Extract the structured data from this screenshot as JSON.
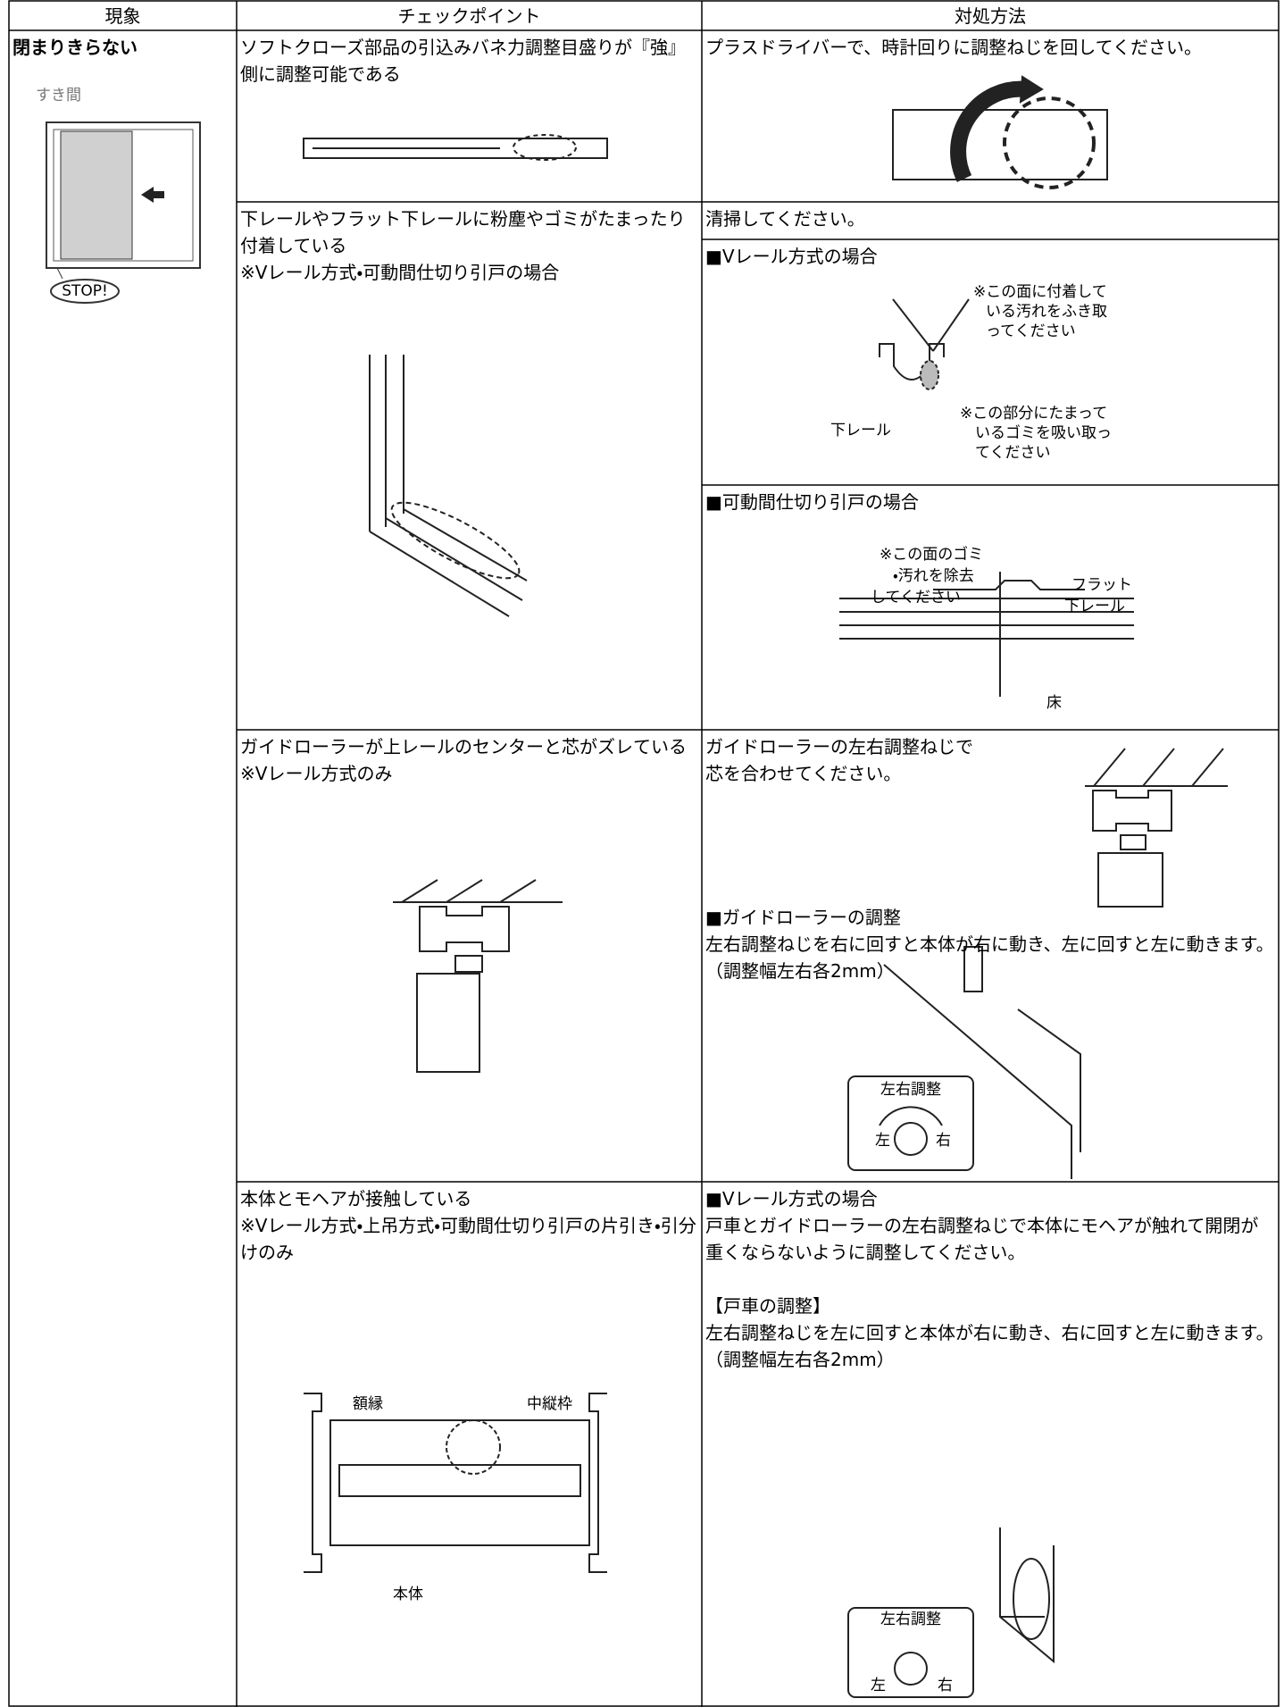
{
  "table": {
    "headers": [
      "現象",
      "チェックポイント",
      "対処方法"
    ],
    "phenomenon": {
      "title": "閉まりきらない",
      "figure_labels": [
        "すき間",
        "STOP!"
      ]
    },
    "rows": [
      {
        "checkpoint": [
          "ソフトクローズ部品の引込みバネ力調整目盛りが『強』側に調整可能である"
        ],
        "actions": [
          {
            "text": [
              "プラスドライバーで、時計回りに調整ねじを回してください。"
            ]
          }
        ]
      },
      {
        "checkpoint": [
          "下レールやフラット下レールに粉塵やゴミがたまったり付着している",
          "※Vレール方式・可動間仕切り引戸の場合"
        ],
        "actions": [
          {
            "text": [
              "清掃してください。"
            ]
          },
          {
            "text": [
              "■Vレール方式の場合"
            ],
            "figure_labels": [
              [
                "※この面に付着して",
                "いる汚れをふき取",
                "ってください"
              ],
              [
                "下レール"
              ],
              [
                "※この部分にたまって",
                "いるゴミを吸い取っ",
                "てください"
              ]
            ]
          },
          {
            "text": [
              "■可動間仕切り引戸の場合"
            ],
            "figure_labels": [
              [
                "※この面のゴミ",
                "・汚れを除去",
                "してください"
              ],
              [
                "フラット",
                "下レール"
              ],
              [
                "床"
              ]
            ]
          }
        ]
      },
      {
        "checkpoint": [
          "ガイドローラーが上レールのセンターと芯がズレている",
          "※Vレール方式のみ"
        ],
        "actions": [
          {
            "text": [
              "ガイドローラーの左右調整ねじで",
              "芯を合わせてください。",
              "■ガイドローラーの調整",
              "左右調整ねじを右に回すと本体が右に動き、左に回すと左に動きます。（調整幅左右各2mm）"
            ],
            "figure_labels": [
              "左右調整",
              "左",
              "右"
            ]
          }
        ]
      },
      {
        "checkpoint": [
          "本体とモヘアが接触している",
          "※Vレール方式・上吊方式・可動間仕切り引戸の片引き・引分けのみ"
        ],
        "figure_labels": [
          "額縁",
          "中縦枠",
          "本体"
        ],
        "actions": [
          {
            "text": [
              "■Vレール方式の場合",
              "戸車とガイドローラーの左右調整ねじで本体にモヘアが触れて開閉が重くならないように調整してください。",
              "【戸車の調整】",
              "左右調整ねじを左に回すと本体が右に動き、右に回すと左に動きます。（調整幅左右各2mm）"
            ],
            "figure_labels": [
              "左右調整",
              "左",
              "右"
            ]
          }
        ]
      }
    ]
  }
}
